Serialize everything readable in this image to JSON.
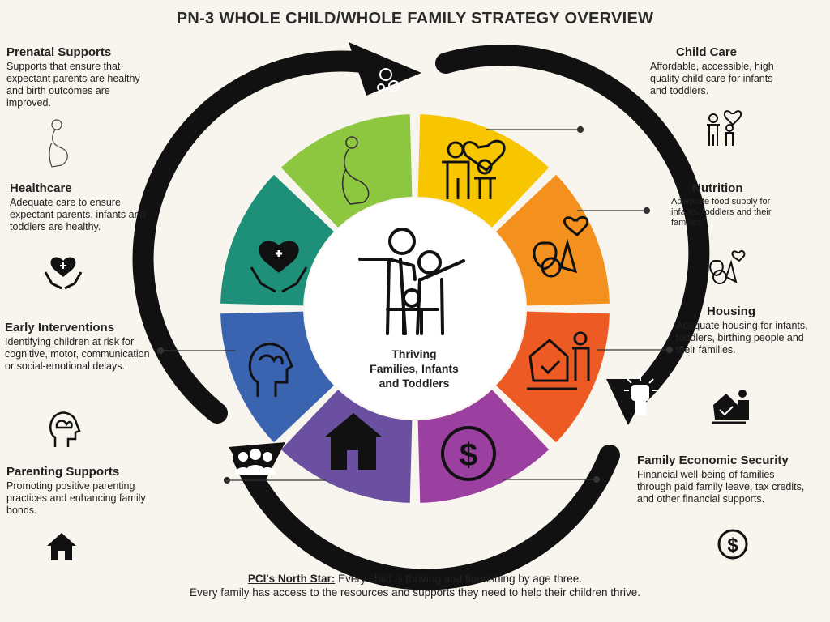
{
  "title": "PN-3 WHOLE CHILD/WHOLE FAMILY STRATEGY OVERVIEW",
  "center": {
    "line1": "Thriving",
    "line2": "Families, Infants",
    "line3": "and Toddlers"
  },
  "colors": {
    "prenatal": "#8dc63f",
    "child_care": "#f7c600",
    "nutrition": "#f4901e",
    "housing": "#ee5a24",
    "economic": "#9b3fa0",
    "parenting": "#6b4fa0",
    "early_interventions": "#3a63b0",
    "healthcare": "#1e9079",
    "arrow": "#111111"
  },
  "sections": {
    "prenatal": {
      "title": "Prenatal Supports",
      "text": "Supports that ensure that expectant parents are healthy and birth outcomes are improved.",
      "icon": "pregnant-woman-icon"
    },
    "healthcare": {
      "title": "Healthcare",
      "text": "Adequate care to ensure expectant parents, infants and toddlers are healthy.",
      "icon": "heart-hands-icon"
    },
    "early_interventions": {
      "title": "Early Interventions",
      "text": "Identifying children at risk for cognitive, motor, communication or social-emotional delays.",
      "icon": "head-brain-icon"
    },
    "parenting": {
      "title": "Parenting Supports",
      "text": "Promoting positive parenting practices and enhancing family bonds.",
      "icon": "house-icon"
    },
    "child_care": {
      "title": "Child Care",
      "text": "Affordable, accessible, high quality child care for infants and toddlers.",
      "icon": "family-heart-icon"
    },
    "nutrition": {
      "title": "Nutrition",
      "text": "Adequate food supply for infants, toddlers and their families.",
      "icon": "fruit-heart-icon"
    },
    "housing": {
      "title": "Housing",
      "text": "Adequate housing for infants, toddlers, birthing people and their families.",
      "icon": "home-family-icon"
    },
    "economic": {
      "title": "Family Economic Security",
      "text": "Financial well-being of families through paid family leave, tax credits, and other financial supports.",
      "icon": "dollar-cycle-icon"
    }
  },
  "north_star": {
    "title": "PCI's North Star:",
    "line1": " Every child is thriving and flourishing by age three.",
    "line2": "Every family has access to the resources and supports they need to help their children thrive."
  }
}
